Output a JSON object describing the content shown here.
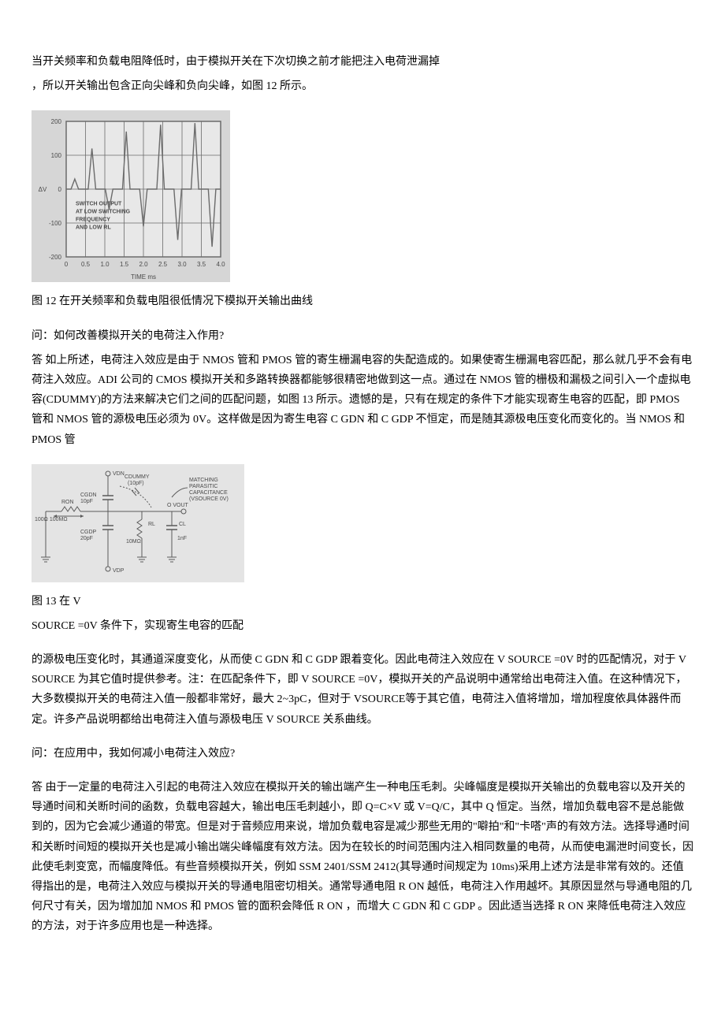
{
  "intro": {
    "line1": "当开关频率和负载电阻降低时，由于模拟开关在下次切换之前才能把注入电荷泄漏掉",
    "line2": "，所以开关输出包含正向尖峰和负向尖峰，如图 12 所示。"
  },
  "fig12": {
    "caption": "图 12 在开关频率和负载电阻很低情况下模拟开关输出曲线",
    "ylabel": "ΔV",
    "xlabel": "TIME    ms",
    "yticks": [
      "200",
      "100",
      "0",
      "-100",
      "-200"
    ],
    "xticks": [
      "0",
      "0.5",
      "1.0",
      "1.5",
      "2.0",
      "2.5",
      "3.0",
      "3.5",
      "4.0"
    ],
    "annotation_lines": [
      "SWITCH OUTPUT",
      "AT LOW SWITCHING",
      "FREQUENCY",
      "AND LOW RL"
    ],
    "bg_color": "#d6d6d6",
    "plot_bg": "#e8e8e8",
    "grid_color": "#6b6b6b",
    "text_color": "#4a4a4a",
    "series_values": [
      30,
      120,
      -60,
      170,
      -110,
      190,
      -150,
      195,
      -170
    ],
    "font_size": 8
  },
  "q1": {
    "question": "问：如何改善模拟开关的电荷注入作用?",
    "answer": "答 如上所述，电荷注入效应是由于 NMOS 管和 PMOS 管的寄生栅漏电容的失配造成的。如果使寄生栅漏电容匹配，那么就几乎不会有电荷注入效应。ADI 公司的 CMOS 模拟开关和多路转换器都能够很精密地做到这一点。通过在 NMOS 管的栅极和漏极之间引入一个虚拟电容(CDUMMY)的方法来解决它们之间的匹配问题，如图 13 所示。遗憾的是，只有在规定的条件下才能实现寄生电容的匹配，即 PMOS 管和 NMOS 管的源极电压必须为 0V。这样做是因为寄生电容 C GDN 和 C GDP 不恒定，而是随其源极电压变化而变化的。当 NMOS 和 PMOS 管"
  },
  "fig13": {
    "caption_line1": "图 13 在 V",
    "caption_line2": "SOURCE =0V 条件下，实现寄生电容的匹配",
    "bg_color": "#e4e4e4",
    "line_color": "#5a5a5a",
    "text_color": "#4a4a4a",
    "labels": {
      "vdn": "VDN",
      "cdummy1": "CDUMMY",
      "cdummy2": "(10pF)",
      "cgdn1": "CGDN",
      "cgdn2": "10pF",
      "ron1": "RON",
      "ron2": "100Ω     100MΩ",
      "cgdp1": "CGDP",
      "cgdp2": "20pF",
      "vdp": "VDP",
      "vout": "O  VOUT",
      "rl1": "RL",
      "rl2": "10MΩ",
      "cl1": "CL",
      "cl2": "1nF",
      "match1": "MATCHING",
      "match2": "PARASITIC",
      "match3": "CAPACITANCE",
      "match4": "(VSOURCE  0V)"
    },
    "font_size": 7
  },
  "middle_para": "的源极电压变化时，其通道深度变化，从而使 C GDN 和 C GDP 跟着变化。因此电荷注入效应在 V SOURCE =0V 时的匹配情况，对于 V SOURCE 为其它值时提供参考。注：在匹配条件下，即 V SOURCE =0V，模拟开关的产品说明中通常给出电荷注入值。在这种情况下，大多数模拟开关的电荷注入值一般都非常好，最大 2~3pC，但对于 VSOURCE等于其它值，电荷注入值将增加，增加程度依具体器件而定。许多产品说明都给出电荷注入值与源极电压 V SOURCE 关系曲线。",
  "q2": {
    "question": "问：在应用中，我如何减小电荷注入效应?",
    "answer": "答 由于一定量的电荷注入引起的电荷注入效应在模拟开关的输出端产生一种电压毛刺。尖峰幅度是模拟开关输出的负载电容以及开关的导通时间和关断时间的函数，负载电容越大，输出电压毛刺越小，即 Q=C×V 或 V=Q/C，其中 Q 恒定。当然，增加负载电容不是总能做到的，因为它会减少通道的带宽。但是对于音频应用来说，增加负载电容是减少那些无用的\"噼拍\"和\"卡嗒\"声的有效方法。选择导通时间和关断时间短的模拟开关也是减小输出端尖峰幅度有效方法。因为在较长的时间范围内注入相同数量的电荷，从而使电漏泄时间变长，因此使毛刺变宽，而幅度降低。有些音频模拟开关，例如 SSM  2401/SSM  2412(其导通时间规定为 10ms)采用上述方法是非常有效的。还值得指出的是，电荷注入效应与模拟开关的导通电阻密切相关。通常导通电阻 R ON 越低，电荷注入作用越坏。其原因显然与导通电阻的几何尺寸有关，因为增加加 NMOS 和 PMOS 管的面积会降低 R ON ，而增大 C GDN 和 C GDP 。因此适当选择 R ON 来降低电荷注入效应的方法，对于许多应用也是一种选择。"
  }
}
